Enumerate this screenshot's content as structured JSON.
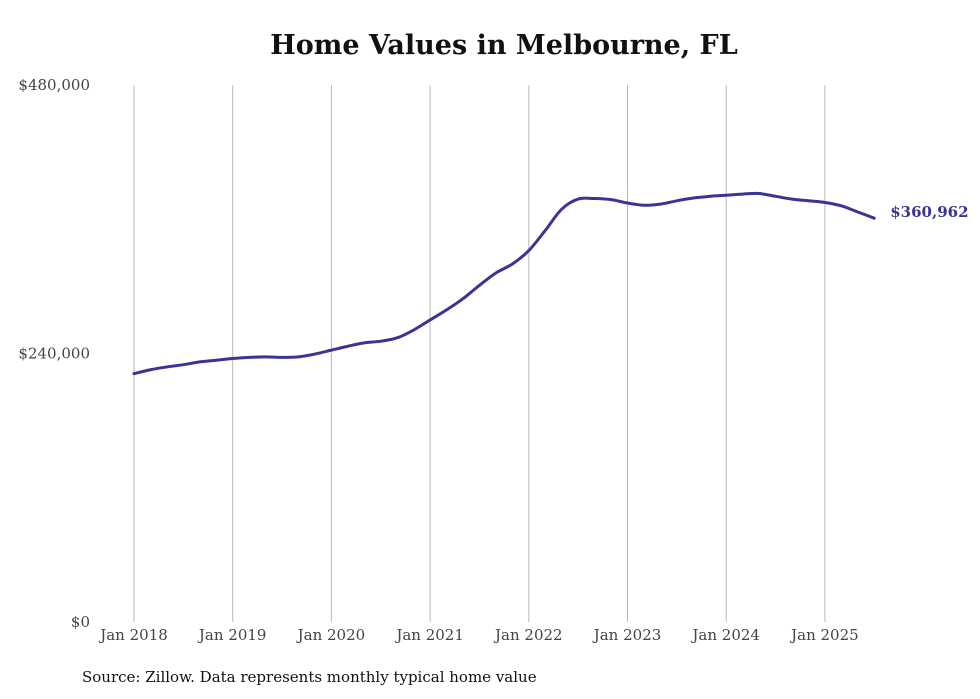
{
  "chart_data": {
    "type": "line",
    "title": "Home Values in Melbourne, FL",
    "xlabel": "",
    "ylabel": "",
    "y_ticks": [
      0,
      240000,
      480000
    ],
    "y_tick_labels": [
      "$0",
      "$240,000",
      "$480,000"
    ],
    "ylim": [
      0,
      480000
    ],
    "x_ticks": [
      "2018-01",
      "2019-01",
      "2020-01",
      "2021-01",
      "2022-01",
      "2023-01",
      "2024-01",
      "2025-01"
    ],
    "x_tick_labels": [
      "Jan 2018",
      "Jan 2019",
      "Jan 2020",
      "Jan 2021",
      "Jan 2022",
      "Jan 2023",
      "Jan 2024",
      "Jan 2025"
    ],
    "grid": "vertical",
    "series": [
      {
        "color": "#3a3497",
        "end_label": "$360,962",
        "points": [
          [
            "2018-01",
            222000
          ],
          [
            "2018-03",
            225500
          ],
          [
            "2018-05",
            228000
          ],
          [
            "2018-07",
            230000
          ],
          [
            "2018-09",
            232500
          ],
          [
            "2018-11",
            234000
          ],
          [
            "2019-01",
            235500
          ],
          [
            "2019-03",
            236500
          ],
          [
            "2019-05",
            237000
          ],
          [
            "2019-07",
            236500
          ],
          [
            "2019-09",
            237000
          ],
          [
            "2019-11",
            239500
          ],
          [
            "2020-01",
            243000
          ],
          [
            "2020-03",
            246500
          ],
          [
            "2020-05",
            249500
          ],
          [
            "2020-07",
            251000
          ],
          [
            "2020-09",
            254000
          ],
          [
            "2020-11",
            261000
          ],
          [
            "2021-01",
            270000
          ],
          [
            "2021-03",
            279000
          ],
          [
            "2021-05",
            289000
          ],
          [
            "2021-07",
            301000
          ],
          [
            "2021-09",
            312000
          ],
          [
            "2021-11",
            320000
          ],
          [
            "2022-01",
            332000
          ],
          [
            "2022-03",
            350000
          ],
          [
            "2022-05",
            369000
          ],
          [
            "2022-07",
            378000
          ],
          [
            "2022-09",
            378500
          ],
          [
            "2022-11",
            377500
          ],
          [
            "2023-01",
            374500
          ],
          [
            "2023-03",
            372500
          ],
          [
            "2023-05",
            373500
          ],
          [
            "2023-07",
            376500
          ],
          [
            "2023-09",
            379000
          ],
          [
            "2023-11",
            380500
          ],
          [
            "2024-01",
            381500
          ],
          [
            "2024-03",
            382500
          ],
          [
            "2024-05",
            383000
          ],
          [
            "2024-07",
            380500
          ],
          [
            "2024-09",
            378000
          ],
          [
            "2024-11",
            376500
          ],
          [
            "2025-01",
            375000
          ],
          [
            "2025-03",
            372000
          ],
          [
            "2025-05",
            366500
          ],
          [
            "2025-07",
            360962
          ]
        ]
      }
    ],
    "source": "Source: Zillow. Data represents monthly typical home value"
  }
}
